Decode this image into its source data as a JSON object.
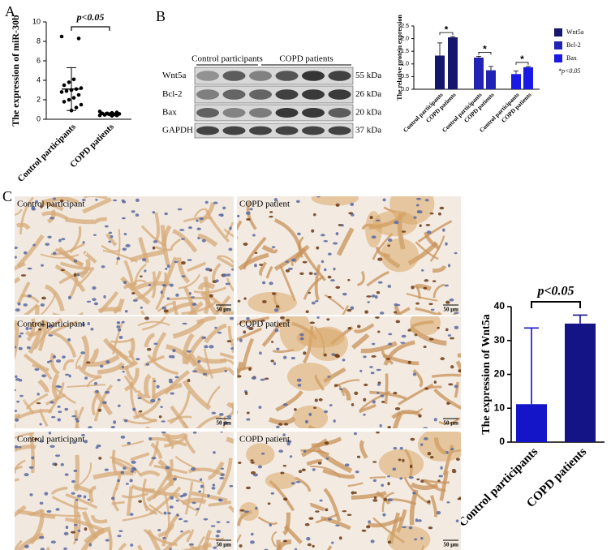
{
  "panel_labels": [
    "A",
    "B",
    "C"
  ],
  "chart_data": [
    {
      "type": "dotplot",
      "y_label": "The expression of miR-30b",
      "categories": [
        "Control participants",
        "COPD patients"
      ],
      "points": [
        [
          8.5,
          8.3,
          4.1,
          3.8,
          3.5,
          3.2,
          3.1,
          3.0,
          2.9,
          2.8,
          2.5,
          2.2,
          2.0,
          1.8,
          1.5,
          1.2,
          0.9
        ],
        [
          0.8,
          0.7,
          0.65,
          0.6,
          0.6,
          0.55,
          0.5,
          0.5,
          0.45,
          0.4,
          0.4,
          0.35
        ]
      ],
      "means": [
        3.1,
        0.55
      ],
      "sds": [
        2.2,
        0.12
      ],
      "color": "#000000",
      "ylim": [
        0,
        10
      ],
      "yticks": [
        0,
        2,
        4,
        6,
        8,
        10
      ],
      "annotation": "p<0.05"
    },
    {
      "type": "bar",
      "y_label": "The relative protein expression",
      "categories": [
        "Control participants",
        "COPD patients",
        "Control participants",
        "COPD patients",
        "Control participants",
        "COPD patients"
      ],
      "series": [
        {
          "name": "Wnt5a",
          "color": "#16166e",
          "values": [
            1.33,
            2.05,
            null,
            null,
            null,
            null
          ],
          "errors": [
            0.5,
            0.03,
            null,
            null,
            null,
            null
          ]
        },
        {
          "name": "Bcl-2",
          "color": "#2222b4",
          "values": [
            null,
            null,
            1.25,
            0.75,
            null,
            null
          ],
          "errors": [
            null,
            null,
            0.05,
            0.15,
            null,
            null
          ]
        },
        {
          "name": "Bax",
          "color": "#1a1ae6",
          "values": [
            null,
            null,
            null,
            null,
            0.6,
            0.87
          ],
          "errors": [
            null,
            null,
            null,
            null,
            0.12,
            0.03
          ]
        }
      ],
      "ylim": [
        0,
        2.5
      ],
      "yticks": [
        {
          "value": 0,
          "label": "0.0"
        },
        {
          "value": 0.5,
          "label": "0.5"
        },
        {
          "value": 1,
          "label": "1.0"
        },
        {
          "value": 1.5,
          "label": "1.5"
        },
        {
          "value": 2,
          "label": "2.0"
        },
        {
          "value": 2.5,
          "label": "2.5"
        }
      ],
      "annotations": [
        "*",
        "*",
        "*"
      ],
      "legend": "right",
      "legend_note": "*p<0.05"
    },
    {
      "type": "bar",
      "y_label": "The expression of Wnt5a",
      "categories": [
        "Control participants",
        "COPD patients"
      ],
      "values": [
        11.2,
        35
      ],
      "errors": [
        22.5,
        2.5
      ],
      "colors": [
        "#1414c8",
        "#141487"
      ],
      "ylim": [
        0,
        40
      ],
      "yticks": [
        0,
        10,
        20,
        30,
        40
      ],
      "annotation": "p<0.05"
    }
  ],
  "blot": {
    "groups": [
      "Control participants",
      "COPD patients"
    ],
    "rows": [
      {
        "protein": "Wnt5a",
        "size": "55 kDa"
      },
      {
        "protein": "Bcl-2",
        "size": "26 kDa"
      },
      {
        "protein": "Bax",
        "size": "20 kDa"
      },
      {
        "protein": "GAPDH",
        "size": "37 kDa"
      }
    ]
  },
  "micrographs": [
    {
      "label": "Control participant",
      "scale": "50 μm"
    },
    {
      "label": "COPD patient",
      "scale": "50 μm"
    },
    {
      "label": "Control participant",
      "scale": "50 μm"
    },
    {
      "label": "COPD patient",
      "scale": "50 μm"
    },
    {
      "label": "Control participant",
      "scale": "50 μm"
    },
    {
      "label": "COPD patient",
      "scale": "50 μm"
    }
  ]
}
